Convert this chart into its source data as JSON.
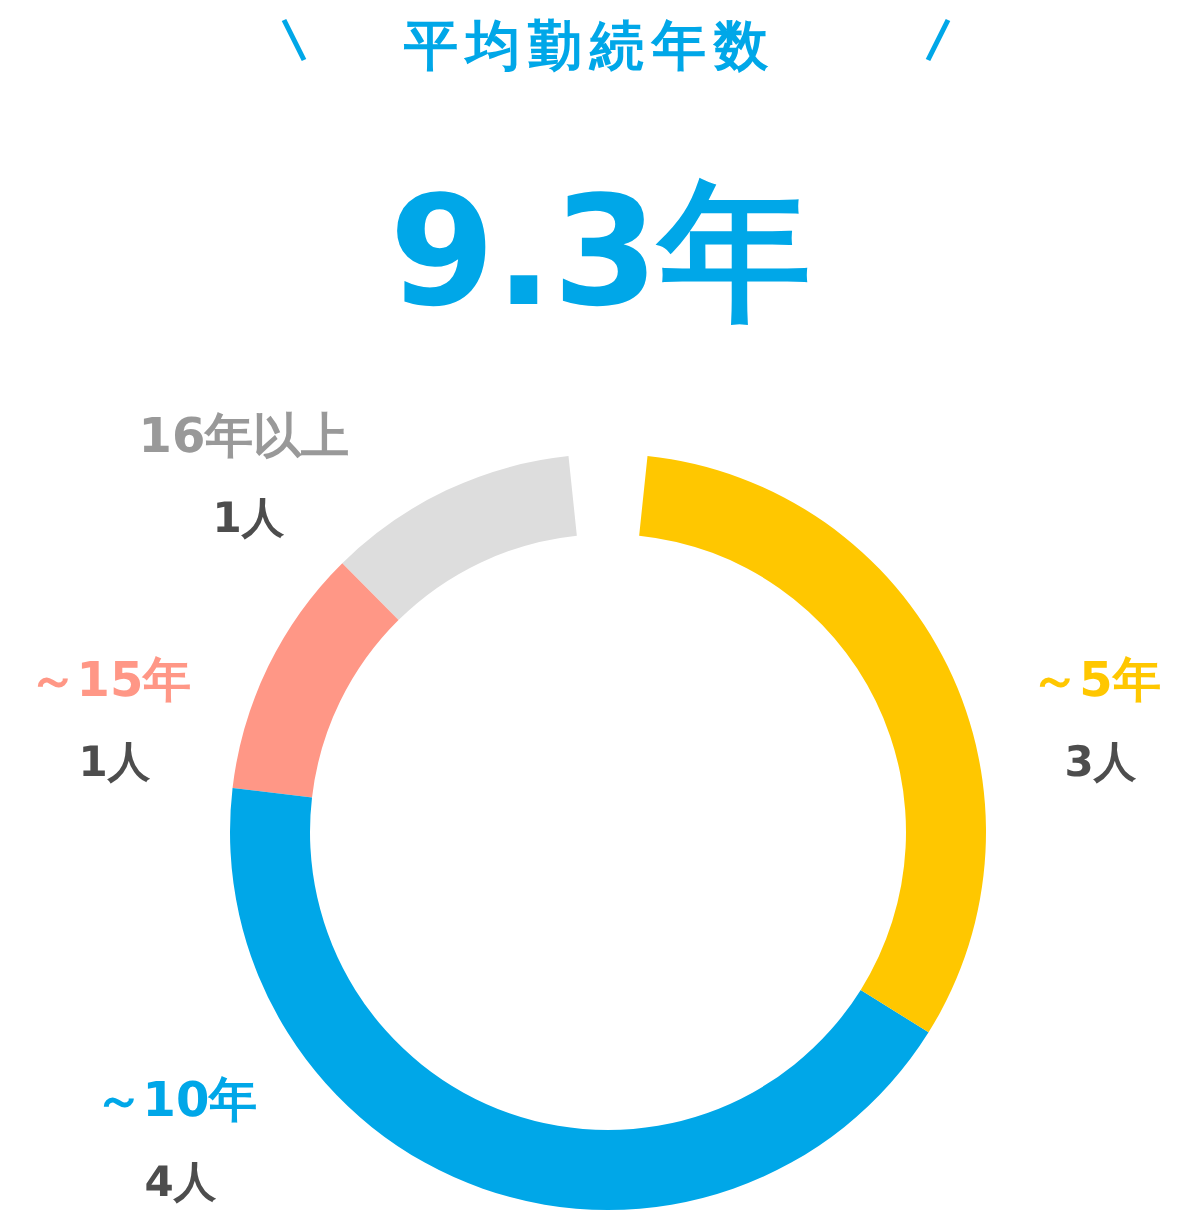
{
  "chart_data": {
    "type": "donut",
    "title": "平均勤続年数",
    "subtitle": "9.3年",
    "categories": [
      "～5年",
      "～10年",
      "～15年",
      "16年以上"
    ],
    "values": [
      3,
      4,
      1,
      1
    ],
    "value_labels": [
      "3人",
      "4人",
      "1人",
      "1人"
    ],
    "colors": [
      "#ffc700",
      "#00a7e8",
      "#ff9786",
      "#dddddd"
    ],
    "legend": false
  }
}
